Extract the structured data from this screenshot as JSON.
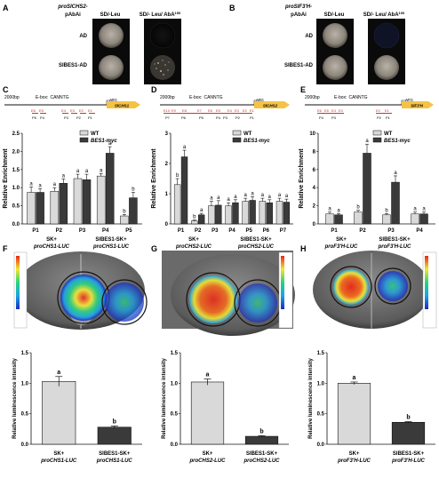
{
  "panel_a": {
    "letter": "A",
    "promoter": "proSlCHS2-",
    "vector": "pAbAi",
    "col1": "SD/-Leu",
    "col2": "SD/- Leu/ AbA",
    "aba_conc": "150",
    "row1": "AD",
    "row2": "SIBES1-AD"
  },
  "panel_b": {
    "letter": "B",
    "promoter": "proSlF3'H-",
    "vector": "pAbAi",
    "col1": "SD/-Leu",
    "col2": "SD/- Leu/ AbA",
    "aba_conc": "100",
    "row1": "AD",
    "row2": "SIBES1-AD"
  },
  "schematic_common": {
    "length": "2000bp",
    "ebox": "E-box:",
    "motif": "CANNTG",
    "atg": "ATG"
  },
  "panel_c": {
    "letter": "C",
    "gene": "SlCHS1",
    "e_labels": [
      "E6",
      "E5",
      "E4",
      "E3",
      "E2",
      "E1"
    ],
    "p_labels": [
      "P5",
      "P4",
      "P3",
      "P2",
      "P1"
    ]
  },
  "panel_d": {
    "letter": "D",
    "gene": "SlCHS2",
    "e_labels": [
      "E10",
      "E9",
      "E8",
      "E7",
      "E6",
      "E5",
      "E4",
      "E3",
      "E2",
      "E1"
    ],
    "p_labels": [
      "P7",
      "P6",
      "P5",
      "P4",
      "P3",
      "P2",
      "P1"
    ]
  },
  "panel_e": {
    "letter": "E",
    "gene": "SlF3'H",
    "e_labels": [
      "E6",
      "E5",
      "E4",
      "E3",
      "E2",
      "E1"
    ],
    "p_labels": [
      "P4",
      "P3",
      "P2",
      "P1"
    ]
  },
  "panel_f": {
    "letter": "F",
    "left_line1": "SK+",
    "left_line2": "proCHS1-LUC",
    "right_line1": "SIBES1-SK+",
    "right_line2": "proCHS1-LUC"
  },
  "panel_g": {
    "letter": "G",
    "left_line1": "SK+",
    "left_line2": "proCHS2-LUC",
    "right_line1": "SIBES1-SK+",
    "right_line2": "proCHS2-LUC"
  },
  "panel_h": {
    "letter": "H",
    "left_line1": "SK+",
    "left_line2": "proF3'H-LUC",
    "right_line1": "SIBES1-SK+",
    "right_line2": "proF3'H-LUC"
  },
  "colors": {
    "wt_bar": "#d9d9d9",
    "bes1_bar": "#3a3a3a",
    "arrow": "#f5c242",
    "e_box": "#c0392b"
  },
  "chart_data": [
    {
      "id": "C",
      "type": "bar",
      "ylabel": "Relative Enrichment",
      "ylim": [
        0,
        2.5
      ],
      "yticks": [
        "0.0",
        "0.5",
        "1.0",
        "1.5",
        "2.0",
        "2.5"
      ],
      "categories": [
        "P1",
        "P2",
        "P3",
        "P4",
        "P5"
      ],
      "series": [
        {
          "name": "WT",
          "values": [
            0.87,
            0.9,
            1.25,
            1.32,
            0.22
          ],
          "errors": [
            0.15,
            0.1,
            0.12,
            0.07,
            0.04
          ],
          "letters": [
            "a",
            "a",
            "a",
            "a",
            "b"
          ]
        },
        {
          "name": "BES1-myc",
          "values": [
            0.87,
            1.12,
            1.22,
            1.95,
            0.72
          ],
          "errors": [
            0.1,
            0.12,
            0.15,
            0.18,
            0.15
          ],
          "letters": [
            "a",
            "a",
            "a",
            "a",
            "b"
          ]
        }
      ]
    },
    {
      "id": "D",
      "type": "bar",
      "ylabel": "Relative Enrichment",
      "ylim": [
        0,
        3
      ],
      "yticks": [
        "0",
        "1",
        "2",
        "3"
      ],
      "categories": [
        "P1",
        "P2",
        "P3",
        "P4",
        "P5",
        "P6",
        "P7"
      ],
      "series": [
        {
          "name": "WT",
          "values": [
            1.3,
            0.1,
            0.6,
            0.6,
            0.75,
            0.75,
            0.75
          ],
          "errors": [
            0.2,
            0.03,
            0.15,
            0.1,
            0.1,
            0.1,
            0.1
          ],
          "letters": [
            "b",
            "b",
            "a",
            "a",
            "a",
            "a",
            "a"
          ]
        },
        {
          "name": "BES1-myc",
          "values": [
            2.22,
            0.3,
            0.62,
            0.7,
            0.78,
            0.7,
            0.72
          ],
          "errors": [
            0.22,
            0.05,
            0.15,
            0.1,
            0.12,
            0.1,
            0.1
          ],
          "letters": [
            "a",
            "a",
            "a",
            "a",
            "a",
            "a",
            "a"
          ]
        }
      ]
    },
    {
      "id": "E",
      "type": "bar",
      "ylabel": "Relative Enrichment",
      "ylim": [
        0,
        10
      ],
      "yticks": [
        "0",
        "2",
        "4",
        "6",
        "8",
        "10"
      ],
      "categories": [
        "P1",
        "P2",
        "P3",
        "P4"
      ],
      "series": [
        {
          "name": "WT",
          "values": [
            1.1,
            1.3,
            1.0,
            1.1
          ],
          "errors": [
            0.2,
            0.2,
            0.15,
            0.2
          ],
          "letters": [
            "a",
            "b",
            "b",
            "a"
          ]
        },
        {
          "name": "BES1-myc",
          "values": [
            1.0,
            7.8,
            4.6,
            1.1
          ],
          "errors": [
            0.15,
            1.0,
            0.7,
            0.2
          ],
          "letters": [
            "a",
            "a",
            "a",
            "a"
          ]
        }
      ]
    },
    {
      "id": "F",
      "type": "bar",
      "ylabel": "Relative luminescence intensity",
      "ylim": [
        0,
        1.5
      ],
      "yticks": [
        "0.0",
        "0.5",
        "1.0",
        "1.5"
      ],
      "categories": [
        "SK+ proCHS1-LUC",
        "SIBES1-SK+ proCHS1-LUC"
      ],
      "values": [
        1.03,
        0.28
      ],
      "errors": [
        0.08,
        0.02
      ],
      "letters": [
        "a",
        "b"
      ]
    },
    {
      "id": "G",
      "type": "bar",
      "ylabel": "Relative luminescence intensity",
      "ylim": [
        0,
        1.5
      ],
      "yticks": [
        "0.0",
        "0.5",
        "1.0",
        "1.5"
      ],
      "categories": [
        "SK+ proCHS2-LUC",
        "SIBES1-SK+ proCHS2-LUC"
      ],
      "values": [
        1.02,
        0.13
      ],
      "errors": [
        0.05,
        0.01
      ],
      "letters": [
        "a",
        "b"
      ]
    },
    {
      "id": "H",
      "type": "bar",
      "ylabel": "Relative luminescence intensity",
      "ylim": [
        0,
        1.5
      ],
      "yticks": [
        "0.0",
        "0.5",
        "1.0",
        "1.5"
      ],
      "categories": [
        "SK+ proF3'H-LUC",
        "SIBES1-SK+ proF3'H-LUC"
      ],
      "values": [
        1.0,
        0.36
      ],
      "errors": [
        0.02,
        0.01
      ],
      "letters": [
        "a",
        "b"
      ]
    }
  ]
}
